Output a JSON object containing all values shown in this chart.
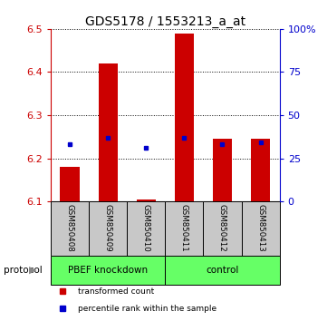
{
  "title": "GDS5178 / 1553213_a_at",
  "samples": [
    "GSM850408",
    "GSM850409",
    "GSM850410",
    "GSM850411",
    "GSM850412",
    "GSM850413"
  ],
  "bar_bottoms": [
    6.1,
    6.1,
    6.1,
    6.1,
    6.1,
    6.1
  ],
  "bar_tops": [
    6.18,
    6.42,
    6.105,
    6.49,
    6.245,
    6.245
  ],
  "blue_y": [
    6.233,
    6.247,
    6.225,
    6.248,
    6.232,
    6.237
  ],
  "ylim": [
    6.1,
    6.5
  ],
  "yticks_left": [
    6.1,
    6.2,
    6.3,
    6.4,
    6.5
  ],
  "yticks_right_vals": [
    0,
    25,
    50,
    75,
    100
  ],
  "yticks_right_labels": [
    "0",
    "25",
    "50",
    "75",
    "100%"
  ],
  "bar_color": "#cc0000",
  "blue_color": "#0000cc",
  "bar_width": 0.5,
  "groups": [
    {
      "label": "PBEF knockdown",
      "indices": [
        0,
        1,
        2
      ],
      "color": "#66ff66"
    },
    {
      "label": "control",
      "indices": [
        3,
        4,
        5
      ],
      "color": "#66ff66"
    }
  ],
  "group_row_label": "protocol",
  "legend_items": [
    {
      "color": "#cc0000",
      "label": "transformed count"
    },
    {
      "color": "#0000cc",
      "label": "percentile rank within the sample"
    }
  ],
  "sample_bg_color": "#c8c8c8",
  "title_fontsize": 10,
  "tick_fontsize": 8
}
